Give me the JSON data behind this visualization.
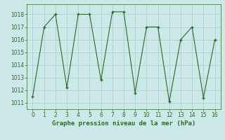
{
  "x": [
    0,
    1,
    2,
    3,
    4,
    5,
    6,
    7,
    8,
    9,
    10,
    11,
    12,
    13,
    14,
    15,
    16
  ],
  "y": [
    1011.5,
    1017.0,
    1018.0,
    1012.2,
    1018.0,
    1018.0,
    1012.8,
    1018.2,
    1018.2,
    1011.8,
    1017.0,
    1017.0,
    1011.1,
    1016.0,
    1017.0,
    1011.4,
    1016.0
  ],
  "line_color": "#2d6a2d",
  "marker": "+",
  "bg_color": "#cce8e8",
  "grid_color": "#aacccc",
  "title": "Graphe pression niveau de la mer (hPa)",
  "xlabel_ticks": [
    0,
    1,
    2,
    3,
    4,
    5,
    6,
    7,
    8,
    9,
    10,
    11,
    12,
    13,
    14,
    15,
    16
  ],
  "ylim": [
    1010.5,
    1018.8
  ],
  "xlim": [
    -0.5,
    16.5
  ],
  "yticks": [
    1011,
    1012,
    1013,
    1014,
    1015,
    1016,
    1017,
    1018
  ],
  "title_fontsize": 6.5,
  "tick_fontsize": 5.5
}
